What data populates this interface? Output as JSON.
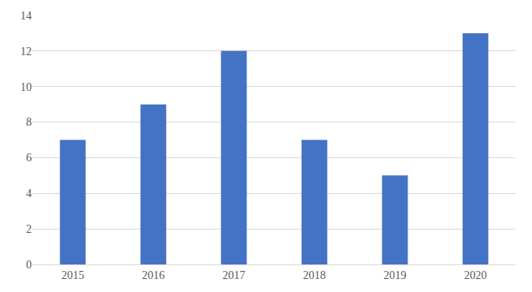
{
  "chart_data": {
    "type": "bar",
    "categories": [
      "2015",
      "2016",
      "2017",
      "2018",
      "2019",
      "2020"
    ],
    "values": [
      7,
      9,
      12,
      7,
      5,
      13
    ],
    "color": "#4472c4",
    "ylim": [
      0,
      14
    ],
    "yticks": [
      0,
      2,
      4,
      6,
      8,
      10,
      12,
      14
    ],
    "grid": true
  }
}
